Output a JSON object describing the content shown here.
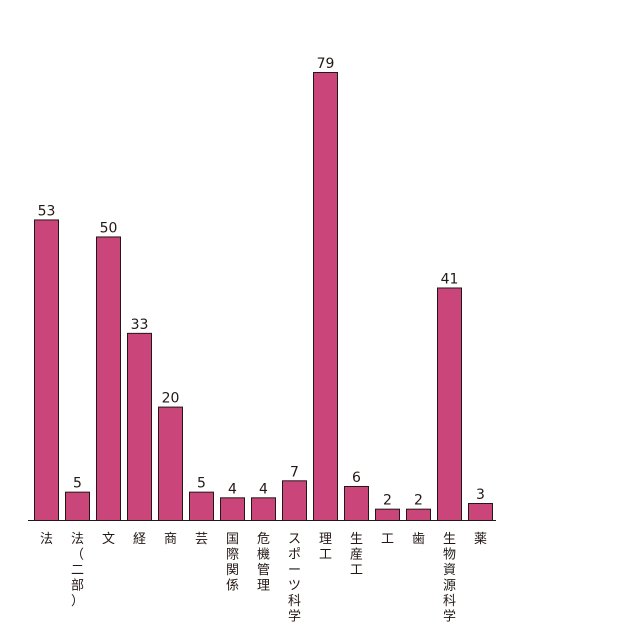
{
  "chart_data": {
    "type": "bar",
    "categories": [
      "法",
      "法（二部）",
      "文",
      "経",
      "商",
      "芸",
      "国際関係",
      "危機管理",
      "スポーツ科学",
      "理工",
      "生産工",
      "工",
      "歯",
      "生物資源科学",
      "薬"
    ],
    "values": [
      53,
      5,
      50,
      33,
      20,
      5,
      4,
      4,
      7,
      79,
      6,
      2,
      2,
      41,
      3
    ],
    "ylim": [
      0,
      79
    ],
    "grid": false,
    "legend": "none",
    "bar_color": "#c9457a",
    "bar_stroke": "#231815"
  }
}
